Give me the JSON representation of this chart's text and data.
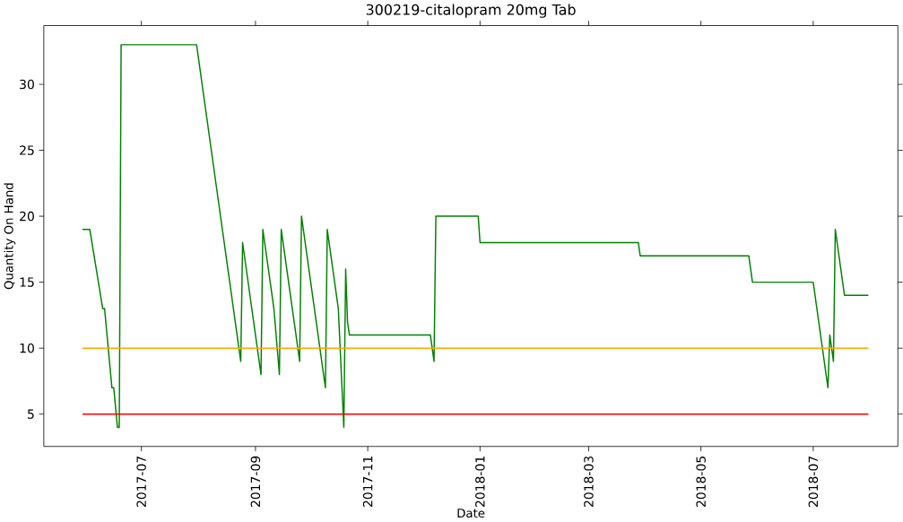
{
  "chart_data": {
    "type": "line",
    "title": "300219-citalopram 20mg Tab",
    "xlabel": "Date",
    "ylabel": "Quantity On Hand",
    "xlim": [
      "2017-05-09",
      "2018-08-16"
    ],
    "ylim": [
      2.55,
      34.45
    ],
    "xticks": [
      "2017-07",
      "2017-09",
      "2017-11",
      "2018-01",
      "2018-03",
      "2018-05",
      "2018-07"
    ],
    "yticks": [
      5,
      10,
      15,
      20,
      25,
      30
    ],
    "series": [
      {
        "color": "#008000",
        "x": [
          "2017-05-30",
          "2017-06-03",
          "2017-06-10",
          "2017-06-11",
          "2017-06-15",
          "2017-06-16",
          "2017-06-18",
          "2017-06-19",
          "2017-06-20",
          "2017-07-31",
          "2017-08-24",
          "2017-08-25",
          "2017-09-04",
          "2017-09-05",
          "2017-09-11",
          "2017-09-14",
          "2017-09-15",
          "2017-09-25",
          "2017-09-26",
          "2017-10-09",
          "2017-10-10",
          "2017-10-16",
          "2017-10-19",
          "2017-10-20",
          "2017-10-21",
          "2017-10-22",
          "2017-12-05",
          "2017-12-07",
          "2017-12-08",
          "2017-12-31",
          "2018-01-01",
          "2018-03-28",
          "2018-03-29",
          "2018-05-27",
          "2018-05-29",
          "2018-07-01",
          "2018-07-09",
          "2018-07-10",
          "2018-07-12",
          "2018-07-13",
          "2018-07-18",
          "2018-07-31"
        ],
        "values": [
          19,
          19,
          13,
          13,
          7,
          7,
          4,
          4,
          33,
          33,
          9,
          18,
          8,
          19,
          13,
          8,
          19,
          9,
          20,
          7,
          19,
          13,
          4,
          16,
          12,
          11,
          11,
          9,
          20,
          20,
          18,
          18,
          17,
          17,
          15,
          15,
          7,
          11,
          9,
          19,
          14,
          14
        ]
      },
      {
        "color": "#ffa500",
        "x": [
          "2017-05-30",
          "2018-07-31"
        ],
        "values": [
          10,
          10
        ]
      },
      {
        "color": "#ff0000",
        "x": [
          "2017-05-30",
          "2018-07-31"
        ],
        "values": [
          5,
          5
        ]
      }
    ]
  }
}
